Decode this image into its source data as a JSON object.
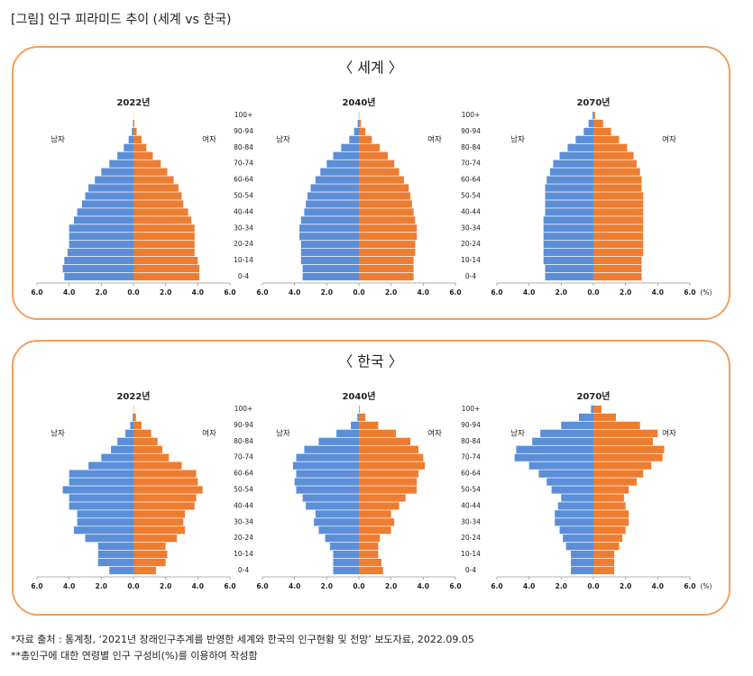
{
  "title": "[그림] 인구 피라미드 추이 (세계 vs 한국)",
  "panels": [
    {
      "heading": "〈 세계 〉"
    },
    {
      "heading": "〈 한국 〉"
    }
  ],
  "age_groups": [
    "0-4",
    null,
    "10-14",
    null,
    "20-24",
    null,
    "30-34",
    null,
    "40-44",
    null,
    "50-54",
    null,
    "60-64",
    null,
    "70-74",
    null,
    "80-84",
    null,
    "90-94",
    null,
    "100+"
  ],
  "chart_data": [
    {
      "type": "pyramid",
      "title": "2022년",
      "xlim": [
        -6,
        6
      ],
      "xticks": [
        {
          "value": -6,
          "label": "6.0"
        },
        {
          "value": -4,
          "label": "4.0"
        },
        {
          "value": -2,
          "label": "2.0"
        },
        {
          "value": 0,
          "label": "0.0"
        },
        {
          "value": 2,
          "label": "2.0"
        },
        {
          "value": 4,
          "label": "4.0"
        },
        {
          "value": 6,
          "label": "6.0"
        }
      ],
      "series": [
        {
          "name": "남자",
          "side": "left",
          "color": "#5b8ed6",
          "values": [
            4.3,
            4.4,
            4.3,
            4.1,
            4.0,
            4.0,
            4.0,
            3.7,
            3.5,
            3.2,
            3.0,
            2.8,
            2.4,
            2.0,
            1.5,
            1.0,
            0.6,
            0.3,
            0.1,
            0.03,
            0.0
          ]
        },
        {
          "name": "여자",
          "side": "right",
          "color": "#ed7d31",
          "values": [
            4.1,
            4.1,
            4.0,
            3.8,
            3.8,
            3.8,
            3.8,
            3.6,
            3.4,
            3.1,
            3.0,
            2.8,
            2.5,
            2.1,
            1.7,
            1.2,
            0.8,
            0.5,
            0.2,
            0.06,
            0.01
          ]
        }
      ]
    },
    {
      "type": "pyramid",
      "title": "2040년",
      "xlim": [
        -6,
        6
      ],
      "xticks": [
        {
          "value": -6,
          "label": "6.0"
        },
        {
          "value": -4,
          "label": "4.0"
        },
        {
          "value": -2,
          "label": "2.0"
        },
        {
          "value": 0,
          "label": "0.0"
        },
        {
          "value": 2,
          "label": "2.0"
        },
        {
          "value": 4,
          "label": "4.0"
        },
        {
          "value": 6,
          "label": "6.0"
        }
      ],
      "series": [
        {
          "name": "남자",
          "side": "left",
          "color": "#5b8ed6",
          "values": [
            3.5,
            3.5,
            3.6,
            3.6,
            3.6,
            3.7,
            3.7,
            3.6,
            3.4,
            3.3,
            3.2,
            3.0,
            2.7,
            2.4,
            2.0,
            1.6,
            1.1,
            0.6,
            0.3,
            0.08,
            0.01
          ]
        },
        {
          "name": "여자",
          "side": "right",
          "color": "#ed7d31",
          "values": [
            3.4,
            3.4,
            3.4,
            3.5,
            3.5,
            3.6,
            3.6,
            3.5,
            3.4,
            3.3,
            3.2,
            3.1,
            2.8,
            2.5,
            2.2,
            1.8,
            1.3,
            0.8,
            0.4,
            0.12,
            0.02
          ]
        }
      ]
    },
    {
      "type": "pyramid",
      "title": "2070년",
      "xlabel": "(%)",
      "xlim": [
        -6,
        6
      ],
      "xticks": [
        {
          "value": -6,
          "label": "6.0"
        },
        {
          "value": -4,
          "label": "4.0"
        },
        {
          "value": -2,
          "label": "2.0"
        },
        {
          "value": 0,
          "label": "0.0"
        },
        {
          "value": 2,
          "label": "2.0"
        },
        {
          "value": 4,
          "label": "4.0"
        },
        {
          "value": 6,
          "label": "6.0"
        }
      ],
      "series": [
        {
          "name": "남자",
          "side": "left",
          "color": "#5b8ed6",
          "values": [
            3.0,
            3.0,
            3.1,
            3.1,
            3.1,
            3.1,
            3.1,
            3.1,
            3.0,
            3.0,
            3.0,
            3.0,
            2.9,
            2.7,
            2.5,
            2.1,
            1.6,
            1.1,
            0.6,
            0.3,
            0.05
          ]
        },
        {
          "name": "여자",
          "side": "right",
          "color": "#ed7d31",
          "values": [
            3.0,
            3.0,
            3.0,
            3.1,
            3.1,
            3.1,
            3.1,
            3.1,
            3.1,
            3.1,
            3.1,
            3.0,
            3.0,
            2.9,
            2.7,
            2.5,
            2.1,
            1.6,
            1.1,
            0.6,
            0.1
          ]
        }
      ]
    },
    {
      "type": "pyramid",
      "title": "2022년",
      "xlim": [
        -6,
        6
      ],
      "xticks": [
        {
          "value": -6,
          "label": "6.0"
        },
        {
          "value": -4,
          "label": "4.0"
        },
        {
          "value": -2,
          "label": "2.0"
        },
        {
          "value": 0,
          "label": "0.0"
        },
        {
          "value": 2,
          "label": "2.0"
        },
        {
          "value": 4,
          "label": "4.0"
        },
        {
          "value": 6,
          "label": "6.0"
        }
      ],
      "series": [
        {
          "name": "남자",
          "side": "left",
          "color": "#5b8ed6",
          "values": [
            1.5,
            2.2,
            2.2,
            2.2,
            3.0,
            3.7,
            3.5,
            3.5,
            4.0,
            4.0,
            4.4,
            4.0,
            4.0,
            2.8,
            2.0,
            1.4,
            1.0,
            0.5,
            0.2,
            0.05,
            0.0
          ]
        },
        {
          "name": "여자",
          "side": "right",
          "color": "#ed7d31",
          "values": [
            1.4,
            2.0,
            2.1,
            2.0,
            2.7,
            3.2,
            3.1,
            3.2,
            3.8,
            3.9,
            4.3,
            4.0,
            3.9,
            3.0,
            2.2,
            1.8,
            1.5,
            1.1,
            0.5,
            0.15,
            0.02
          ]
        }
      ]
    },
    {
      "type": "pyramid",
      "title": "2040년",
      "xlim": [
        -6,
        6
      ],
      "xticks": [
        {
          "value": -6,
          "label": "6.0"
        },
        {
          "value": -4,
          "label": "4.0"
        },
        {
          "value": -2,
          "label": "2.0"
        },
        {
          "value": 0,
          "label": "0.0"
        },
        {
          "value": 2,
          "label": "2.0"
        },
        {
          "value": 4,
          "label": "4.0"
        },
        {
          "value": 6,
          "label": "6.0"
        }
      ],
      "series": [
        {
          "name": "남자",
          "side": "left",
          "color": "#5b8ed6",
          "values": [
            1.6,
            1.6,
            1.6,
            1.8,
            2.1,
            2.5,
            2.8,
            2.7,
            3.3,
            3.5,
            3.9,
            4.0,
            3.9,
            4.1,
            3.9,
            3.4,
            2.5,
            1.4,
            0.5,
            0.1,
            0.0
          ]
        },
        {
          "name": "여자",
          "side": "right",
          "color": "#ed7d31",
          "values": [
            1.5,
            1.4,
            1.2,
            1.2,
            1.3,
            2.0,
            2.2,
            2.0,
            2.5,
            2.9,
            3.6,
            3.6,
            3.7,
            4.1,
            4.0,
            3.7,
            3.2,
            2.3,
            1.2,
            0.4,
            0.05
          ]
        }
      ]
    },
    {
      "type": "pyramid",
      "title": "2070년",
      "xlabel": "(%)",
      "xlim": [
        -6,
        6
      ],
      "xticks": [
        {
          "value": -6,
          "label": "6.0"
        },
        {
          "value": -4,
          "label": "4.0"
        },
        {
          "value": -2,
          "label": "2.0"
        },
        {
          "value": 0,
          "label": "0.0"
        },
        {
          "value": 2,
          "label": "2.0"
        },
        {
          "value": 4,
          "label": "4.0"
        },
        {
          "value": 6,
          "label": "6.0"
        }
      ],
      "series": [
        {
          "name": "남자",
          "side": "left",
          "color": "#5b8ed6",
          "values": [
            1.4,
            1.4,
            1.4,
            1.7,
            1.9,
            2.1,
            2.4,
            2.4,
            2.2,
            2.0,
            2.6,
            2.9,
            3.4,
            4.0,
            4.9,
            4.8,
            3.8,
            3.3,
            2.0,
            0.9,
            0.15
          ]
        },
        {
          "name": "여자",
          "side": "right",
          "color": "#ed7d31",
          "values": [
            1.3,
            1.3,
            1.3,
            1.6,
            1.8,
            2.0,
            2.2,
            2.2,
            2.0,
            1.9,
            2.2,
            2.7,
            3.1,
            3.6,
            4.3,
            4.4,
            3.7,
            4.0,
            2.9,
            1.4,
            0.5
          ]
        }
      ]
    }
  ],
  "notes": [
    "*자료 출처 : 통계청, ‘2021년 장래인구추계를 반영한 세계와 한국의 인구현황 및 전망’ 보도자료, 2022.09.05",
    "**총인구에 대한 연령별 인구 구성비(%)를 이용하여 작성함"
  ]
}
